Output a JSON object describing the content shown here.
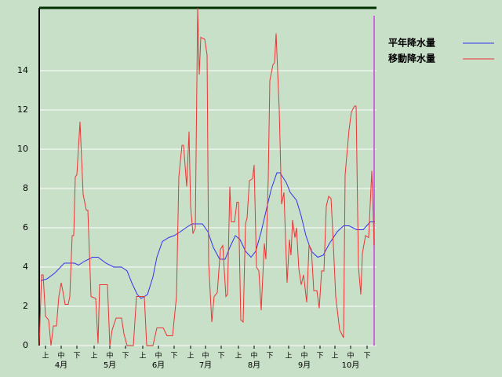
{
  "chart_data": {
    "type": "line",
    "ylim": [
      0,
      17.2
    ],
    "yticks": [
      0,
      2,
      4,
      6,
      8,
      10,
      12,
      14
    ],
    "grid": true,
    "xlim": [
      0,
      215
    ],
    "xticks": [
      {
        "value": 4,
        "label": "上"
      },
      {
        "value": 14,
        "label": "中"
      },
      {
        "value": 24,
        "label": "下"
      },
      {
        "value": 35,
        "label": "上"
      },
      {
        "value": 45,
        "label": "中"
      },
      {
        "value": 55,
        "label": "下"
      },
      {
        "value": 66,
        "label": "上"
      },
      {
        "value": 76,
        "label": "中"
      },
      {
        "value": 86,
        "label": "下"
      },
      {
        "value": 96.5,
        "label": "上"
      },
      {
        "value": 106,
        "label": "中"
      },
      {
        "value": 116,
        "label": "下"
      },
      {
        "value": 127,
        "label": "上"
      },
      {
        "value": 137,
        "label": "中"
      },
      {
        "value": 147,
        "label": "下"
      },
      {
        "value": 159,
        "label": "上"
      },
      {
        "value": 169,
        "label": "中"
      },
      {
        "value": 179,
        "label": "下"
      },
      {
        "value": 188.5,
        "label": "上"
      },
      {
        "value": 198.5,
        "label": "中"
      },
      {
        "value": 209,
        "label": "下"
      }
    ],
    "month_labels": [
      {
        "value": 14,
        "label": "4月"
      },
      {
        "value": 45,
        "label": "5月"
      },
      {
        "value": 76,
        "label": "6月"
      },
      {
        "value": 106,
        "label": "7月"
      },
      {
        "value": 137,
        "label": "8月"
      },
      {
        "value": 169,
        "label": "9月"
      },
      {
        "value": 198.5,
        "label": "10月"
      }
    ],
    "current_day_line": {
      "x": 213.5,
      "color": "#cc66dd"
    },
    "series": [
      {
        "name": "平年降水量",
        "color": "#3333ee",
        "x": [
          1,
          5,
          10,
          16,
          22.5,
          25,
          29,
          34,
          37.5,
          42.5,
          47.5,
          52.5,
          56,
          59,
          62.5,
          65,
          69,
          72.5,
          75,
          78.5,
          82.5,
          86,
          90,
          93.5,
          97.5,
          104,
          107.5,
          111,
          115,
          118.5,
          121.5,
          125,
          128,
          131.5,
          135,
          138,
          141.5,
          145,
          148,
          151.5,
          153.5,
          157.5,
          160,
          164,
          167,
          170,
          173.5,
          177.5,
          181,
          185,
          190,
          194,
          197.5,
          202.5,
          206.5,
          211,
          214
        ],
        "values": [
          3.3,
          3.4,
          3.7,
          4.2,
          4.2,
          4.1,
          4.3,
          4.5,
          4.5,
          4.2,
          4.0,
          4.0,
          3.8,
          3.2,
          2.6,
          2.4,
          2.6,
          3.5,
          4.5,
          5.3,
          5.5,
          5.6,
          5.8,
          6.0,
          6.2,
          6.2,
          5.8,
          5.0,
          4.4,
          4.4,
          5.0,
          5.6,
          5.4,
          4.8,
          4.5,
          4.8,
          5.8,
          7.0,
          8.0,
          8.8,
          8.8,
          8.3,
          7.8,
          7.4,
          6.6,
          5.6,
          4.8,
          4.5,
          4.6,
          5.2,
          5.8,
          6.1,
          6.1,
          5.9,
          5.9,
          6.3,
          6.3
        ]
      },
      {
        "name": "移動降水量",
        "color": "#ee3333",
        "x": [
          0,
          1.5,
          2.5,
          4,
          6,
          7.5,
          9,
          11,
          12.5,
          14,
          15,
          16.5,
          18.5,
          19.5,
          21,
          22,
          23,
          24,
          26,
          28,
          30,
          31,
          33,
          36,
          37.5,
          38.5,
          43.5,
          45,
          46.5,
          49,
          52.5,
          54,
          56,
          60,
          62,
          67,
          68.5,
          72.5,
          75,
          79,
          81.5,
          85,
          87.5,
          89,
          91,
          92,
          94,
          95.5,
          96.5,
          98,
          99.5,
          101,
          102,
          103,
          105.5,
          107,
          108,
          110,
          111.5,
          113.5,
          115.5,
          117,
          119,
          120,
          121.5,
          122.5,
          124.5,
          126,
          127,
          128.5,
          130,
          131.5,
          132.5,
          134,
          136,
          137,
          138.5,
          140,
          141.5,
          143.5,
          144.5,
          146,
          147,
          149,
          150,
          151,
          153,
          154.5,
          156,
          158,
          159.5,
          160.5,
          161.5,
          163,
          164,
          165.5,
          167,
          168.5,
          170.5,
          172,
          173.5,
          175,
          177,
          178.5,
          180,
          181.5,
          183,
          184.5,
          186,
          187,
          189,
          191.5,
          194,
          195,
          197.5,
          199,
          201,
          202,
          203.5,
          205,
          206,
          208,
          210,
          212,
          213.5
        ],
        "values": [
          0,
          3.6,
          3.6,
          1.5,
          1.3,
          0,
          1.0,
          1.0,
          2.5,
          3.2,
          2.8,
          2.1,
          2.1,
          2.5,
          5.6,
          5.6,
          8.6,
          8.7,
          11.4,
          7.7,
          6.9,
          6.9,
          2.5,
          2.4,
          0.1,
          3.1,
          3.1,
          0,
          0.8,
          1.4,
          1.4,
          0.6,
          0,
          0,
          2.5,
          2.5,
          0,
          0,
          0.9,
          0.9,
          0.5,
          0.5,
          2.5,
          8.6,
          10.2,
          10.2,
          8.1,
          10.9,
          7.1,
          5.7,
          6.0,
          17.2,
          13.8,
          15.7,
          15.6,
          14.8,
          4.2,
          1.2,
          2.5,
          2.7,
          4.9,
          5.1,
          2.5,
          2.6,
          8.1,
          6.3,
          6.3,
          7.3,
          7.3,
          1.3,
          1.2,
          6.2,
          6.5,
          8.4,
          8.5,
          9.2,
          4.0,
          3.8,
          1.8,
          5.2,
          4.4,
          8.5,
          13.5,
          14.3,
          14.4,
          15.9,
          12.0,
          7.2,
          7.8,
          3.2,
          5.4,
          4.6,
          6.4,
          5.5,
          6.0,
          3.9,
          3.1,
          3.6,
          2.2,
          5.1,
          4.9,
          2.8,
          2.8,
          1.9,
          3.8,
          3.8,
          7.1,
          7.6,
          7.5,
          6.0,
          2.5,
          0.8,
          0.4,
          8.7,
          11.0,
          11.9,
          12.2,
          12.2,
          4.0,
          2.6,
          4.7,
          5.6,
          5.5,
          8.9,
          5.1
        ]
      }
    ]
  }
}
